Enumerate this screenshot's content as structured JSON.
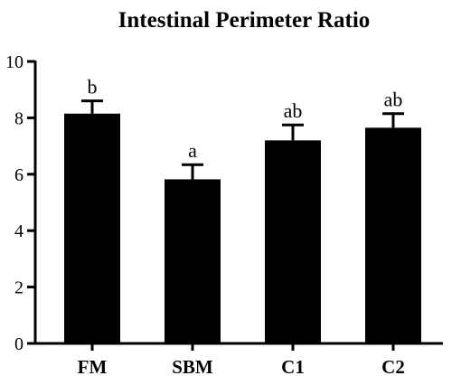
{
  "chart_data": {
    "type": "bar",
    "title": "Intestinal Perimeter Ratio",
    "xlabel": "",
    "ylabel": "",
    "categories": [
      "FM",
      "SBM",
      "C1",
      "C2"
    ],
    "values": [
      8.15,
      5.82,
      7.2,
      7.65
    ],
    "error": [
      0.45,
      0.52,
      0.55,
      0.5
    ],
    "annotations": [
      "b",
      "a",
      "ab",
      "ab"
    ],
    "ylim": [
      0,
      10
    ],
    "yticks": [
      "0",
      "2",
      "4",
      "6",
      "8",
      "10"
    ],
    "grid": false,
    "legend": "none",
    "bar_color": "#000000"
  }
}
